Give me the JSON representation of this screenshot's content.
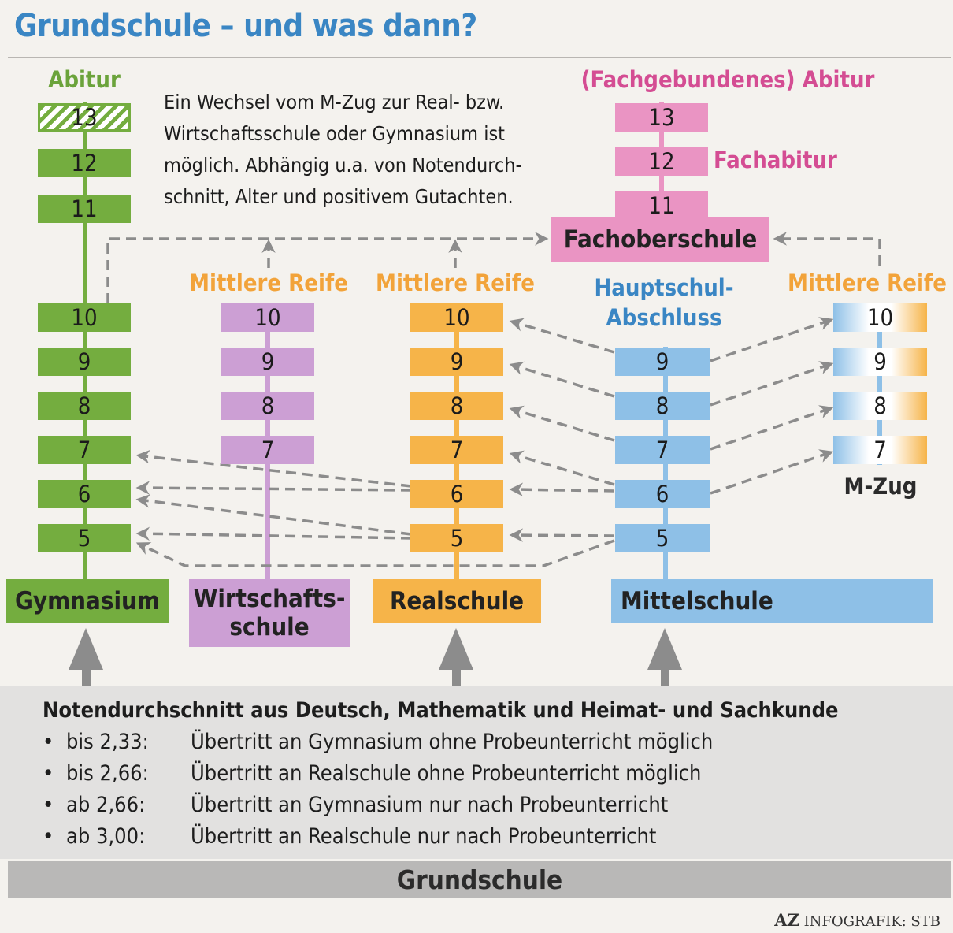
{
  "title": "Grundschule – und was dann?",
  "intro": [
    "Ein Wechsel vom M-Zug zur Real- bzw.",
    "Wirtschaftsschule oder Gymnasium ist",
    "möglich. Abhängig u.a. von Notendurch-",
    "schnitt, Alter und positivem Gutachten."
  ],
  "colors": {
    "gymnasium": "#74ad3f",
    "wirtschaftsschule": "#cc9fd4",
    "realschule": "#f6b449",
    "mittelschule": "#8ec0e7",
    "fachoberschule": "#ea94c3",
    "arrow": "#8c8c8c"
  },
  "gymnasium": {
    "name": "Gymnasium",
    "top_label": "Abitur",
    "grades": [
      "13",
      "12",
      "11",
      "10",
      "9",
      "8",
      "7",
      "6",
      "5"
    ]
  },
  "wirtschaftsschule": {
    "name_line1": "Wirtschafts-",
    "name_line2": "schule",
    "top_label": "Mittlere Reife",
    "grades": [
      "10",
      "9",
      "8",
      "7"
    ]
  },
  "realschule": {
    "name": "Realschule",
    "top_label": "Mittlere Reife",
    "grades": [
      "10",
      "9",
      "8",
      "7",
      "6",
      "5"
    ]
  },
  "mittelschule": {
    "name": "Mittelschule",
    "top_label_line1": "Hauptschul-",
    "top_label_line2": "Abschluss",
    "grades": [
      "9",
      "8",
      "7",
      "6",
      "5"
    ]
  },
  "mzug": {
    "name": "M-Zug",
    "top_label": "Mittlere Reife",
    "grades": [
      "10",
      "9",
      "8",
      "7"
    ]
  },
  "fachoberschule": {
    "name": "Fachoberschule",
    "top_label": "(Fachgebundenes) Abitur",
    "side_label": "Fachabitur",
    "grades": [
      "13",
      "12",
      "11"
    ]
  },
  "grundschule": {
    "name": "Grundschule",
    "heading": "Notendurchschnitt aus Deutsch, Mathematik und Heimat- und Sachkunde",
    "bullet": "•",
    "rules": [
      {
        "key": "bis 2,33:",
        "text": "Übertritt an Gymnasium ohne Probeunterricht möglich"
      },
      {
        "key": "bis 2,66:",
        "text": "Übertritt an Realschule ohne Probeunterricht möglich"
      },
      {
        "key": "ab 2,66:",
        "text": "Übertritt an Gymnasium nur nach Probeunterricht"
      },
      {
        "key": "ab 3,00:",
        "text": "Übertritt an Realschule nur nach Probeunterricht"
      }
    ]
  },
  "credit": {
    "brand": "AZ",
    "text": "INFOGRAFIK: STB"
  }
}
